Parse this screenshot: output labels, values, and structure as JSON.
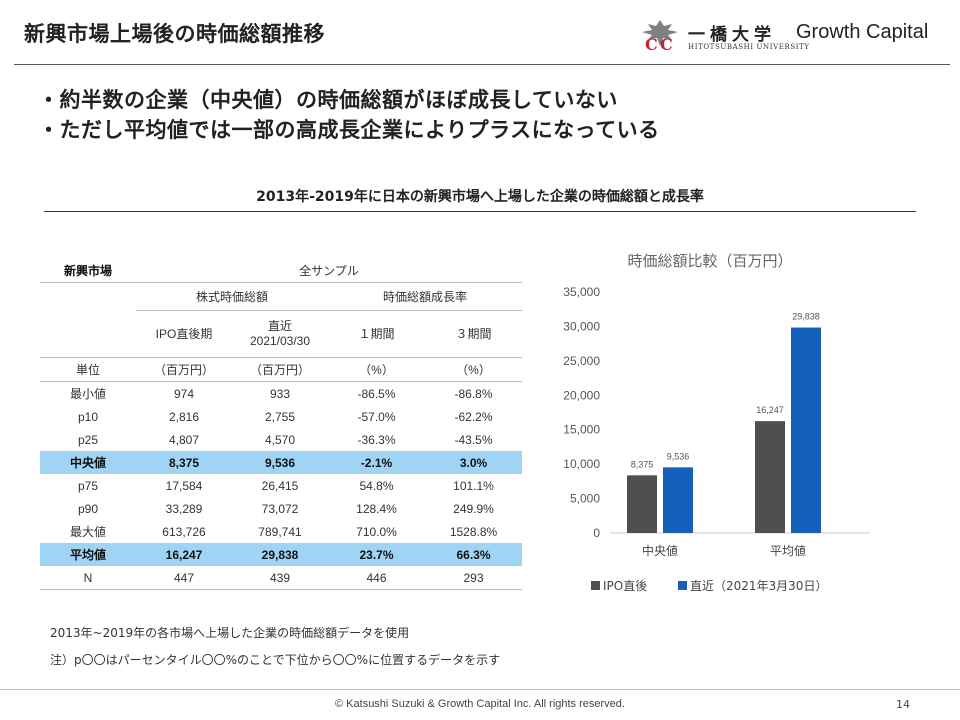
{
  "header": {
    "title": "新興市場上場後の時価総額推移",
    "university_name": "一橋大学",
    "university_sub": "HITOTSUBASHI UNIVERSITY",
    "logo_mark": "hitotsubashi-logo",
    "brand": "Growth Capital"
  },
  "bullets": [
    "・約半数の企業（中央値）の時価総額がほぼ成長していない",
    "・ただし平均値では一部の高成長企業によりプラスになっている"
  ],
  "section_title": "2013年-2019年に日本の新興市場へ上場した企業の時価総額と成長率",
  "table": {
    "market_label": "新興市場",
    "all_sample": "全サンプル",
    "group_cap": "株式時価総額",
    "group_growth": "時価総額成長率",
    "col_ipo": "IPO直後期",
    "col_recent_1": "直近",
    "col_recent_2": "2021/03/30",
    "col_1y": "１期間",
    "col_3y": "３期間",
    "rows": [
      {
        "label": "単位",
        "c1": "（百万円）",
        "c2": "（百万円）",
        "c3": "（%）",
        "c4": "（%）"
      },
      {
        "label": "最小値",
        "c1": "974",
        "c2": "933",
        "c3": "-86.5%",
        "c4": "-86.8%"
      },
      {
        "label": "p10",
        "c1": "2,816",
        "c2": "2,755",
        "c3": "-57.0%",
        "c4": "-62.2%"
      },
      {
        "label": "p25",
        "c1": "4,807",
        "c2": "4,570",
        "c3": "-36.3%",
        "c4": "-43.5%"
      },
      {
        "label": "中央値",
        "c1": "8,375",
        "c2": "9,536",
        "c3": "-2.1%",
        "c4": "3.0%"
      },
      {
        "label": "p75",
        "c1": "17,584",
        "c2": "26,415",
        "c3": "54.8%",
        "c4": "101.1%"
      },
      {
        "label": "p90",
        "c1": "33,289",
        "c2": "73,072",
        "c3": "128.4%",
        "c4": "249.9%"
      },
      {
        "label": "最大値",
        "c1": "613,726",
        "c2": "789,741",
        "c3": "710.0%",
        "c4": "1528.8%"
      },
      {
        "label": "平均値",
        "c1": "16,247",
        "c2": "29,838",
        "c3": "23.7%",
        "c4": "66.3%"
      },
      {
        "label": "N",
        "c1": "447",
        "c2": "439",
        "c3": "446",
        "c4": "293"
      }
    ],
    "highlight_color": "#9fd4f5"
  },
  "chart_data": {
    "type": "bar",
    "title": "時価総額比較（百万円）",
    "categories": [
      "中央値",
      "平均値"
    ],
    "series": [
      {
        "name": "IPO直後",
        "values": [
          8375,
          16247
        ],
        "color": "#4f4f4f"
      },
      {
        "name": "直近（2021年3月30日）",
        "values": [
          9536,
          29838
        ],
        "color": "#1560bd"
      }
    ],
    "data_labels": [
      [
        "8,375",
        "16,247"
      ],
      [
        "9,536",
        "29,838"
      ]
    ],
    "ylim": [
      0,
      35000
    ],
    "yticks": [
      0,
      5000,
      10000,
      15000,
      20000,
      25000,
      30000,
      35000
    ],
    "ytick_labels": [
      "0",
      "5,000",
      "10,000",
      "15,000",
      "20,000",
      "25,000",
      "30,000",
      "35,000"
    ],
    "grid": false,
    "legend_position": "bottom"
  },
  "notes": [
    "2013年~2019年の各市場へ上場した企業の時価総額データを使用",
    "注）p〇〇はパーセンタイル〇〇%のことで下位から〇〇%に位置するデータを示す"
  ],
  "footer": {
    "copyright": "© Katsushi Suzuki & Growth Capital Inc. All rights reserved.",
    "page": "14"
  }
}
